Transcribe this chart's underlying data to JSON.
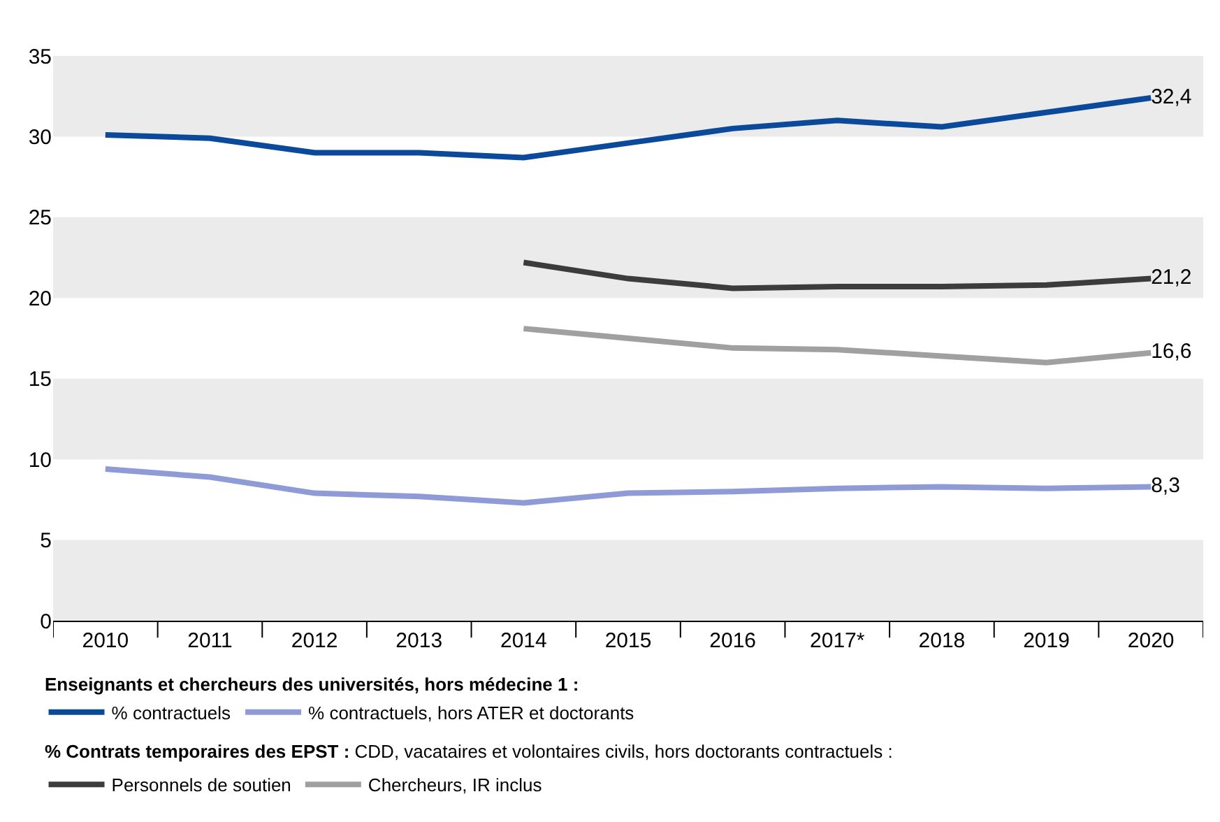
{
  "chart_data": {
    "type": "line",
    "categories": [
      "2010",
      "2011",
      "2012",
      "2013",
      "2014",
      "2015",
      "2016",
      "2017*",
      "2018",
      "2019",
      "2020"
    ],
    "series": [
      {
        "name": "% contractuels",
        "color": "#0b4a9b",
        "values": [
          30.1,
          29.9,
          29.0,
          29.0,
          28.7,
          29.6,
          30.5,
          31.0,
          30.6,
          31.5,
          32.4
        ],
        "value_labels": [
          null,
          null,
          null,
          null,
          null,
          null,
          null,
          null,
          null,
          null,
          "32,4"
        ]
      },
      {
        "name": "% contractuels, hors ATER et doctorants",
        "color": "#8e9bd6",
        "values": [
          9.4,
          8.9,
          7.9,
          7.7,
          7.3,
          7.9,
          8.0,
          8.2,
          8.3,
          8.2,
          8.3
        ],
        "value_labels": [
          null,
          null,
          null,
          null,
          null,
          null,
          null,
          null,
          null,
          null,
          "8,3"
        ]
      },
      {
        "name": "Personnels de soutien",
        "color": "#3c3c3c",
        "values": [
          null,
          null,
          null,
          null,
          22.2,
          21.2,
          20.6,
          20.7,
          20.7,
          20.8,
          21.2
        ],
        "value_labels": [
          null,
          null,
          null,
          null,
          null,
          null,
          null,
          null,
          null,
          null,
          "21,2"
        ]
      },
      {
        "name": "Chercheurs, IR inclus",
        "color": "#a0a0a0",
        "values": [
          null,
          null,
          null,
          null,
          18.1,
          17.5,
          16.9,
          16.8,
          16.4,
          16.0,
          16.6
        ],
        "value_labels": [
          null,
          null,
          null,
          null,
          null,
          null,
          null,
          null,
          null,
          null,
          "16,6"
        ]
      }
    ],
    "ylim": [
      0,
      35
    ],
    "yticks": [
      0,
      5,
      10,
      15,
      20,
      25,
      30,
      35
    ],
    "grid": false,
    "legend": "bottom",
    "marker": "none",
    "line_style": "solid",
    "bands": [
      {
        "axis": "y",
        "from": 0,
        "to": 5,
        "color": "#ebebeb"
      },
      {
        "axis": "y",
        "from": 10,
        "to": 15,
        "color": "#ebebeb"
      },
      {
        "axis": "y",
        "from": 20,
        "to": 25,
        "color": "#ebebeb"
      },
      {
        "axis": "y",
        "from": 30,
        "to": 35,
        "color": "#ebebeb"
      }
    ],
    "annotations": [
      "Enseignants et chercheurs des universités, hors médecine 1 :",
      "% Contrats temporaires des EPST : CDD, vacataires et volontaires civils, hors doctorants contractuels :"
    ]
  }
}
